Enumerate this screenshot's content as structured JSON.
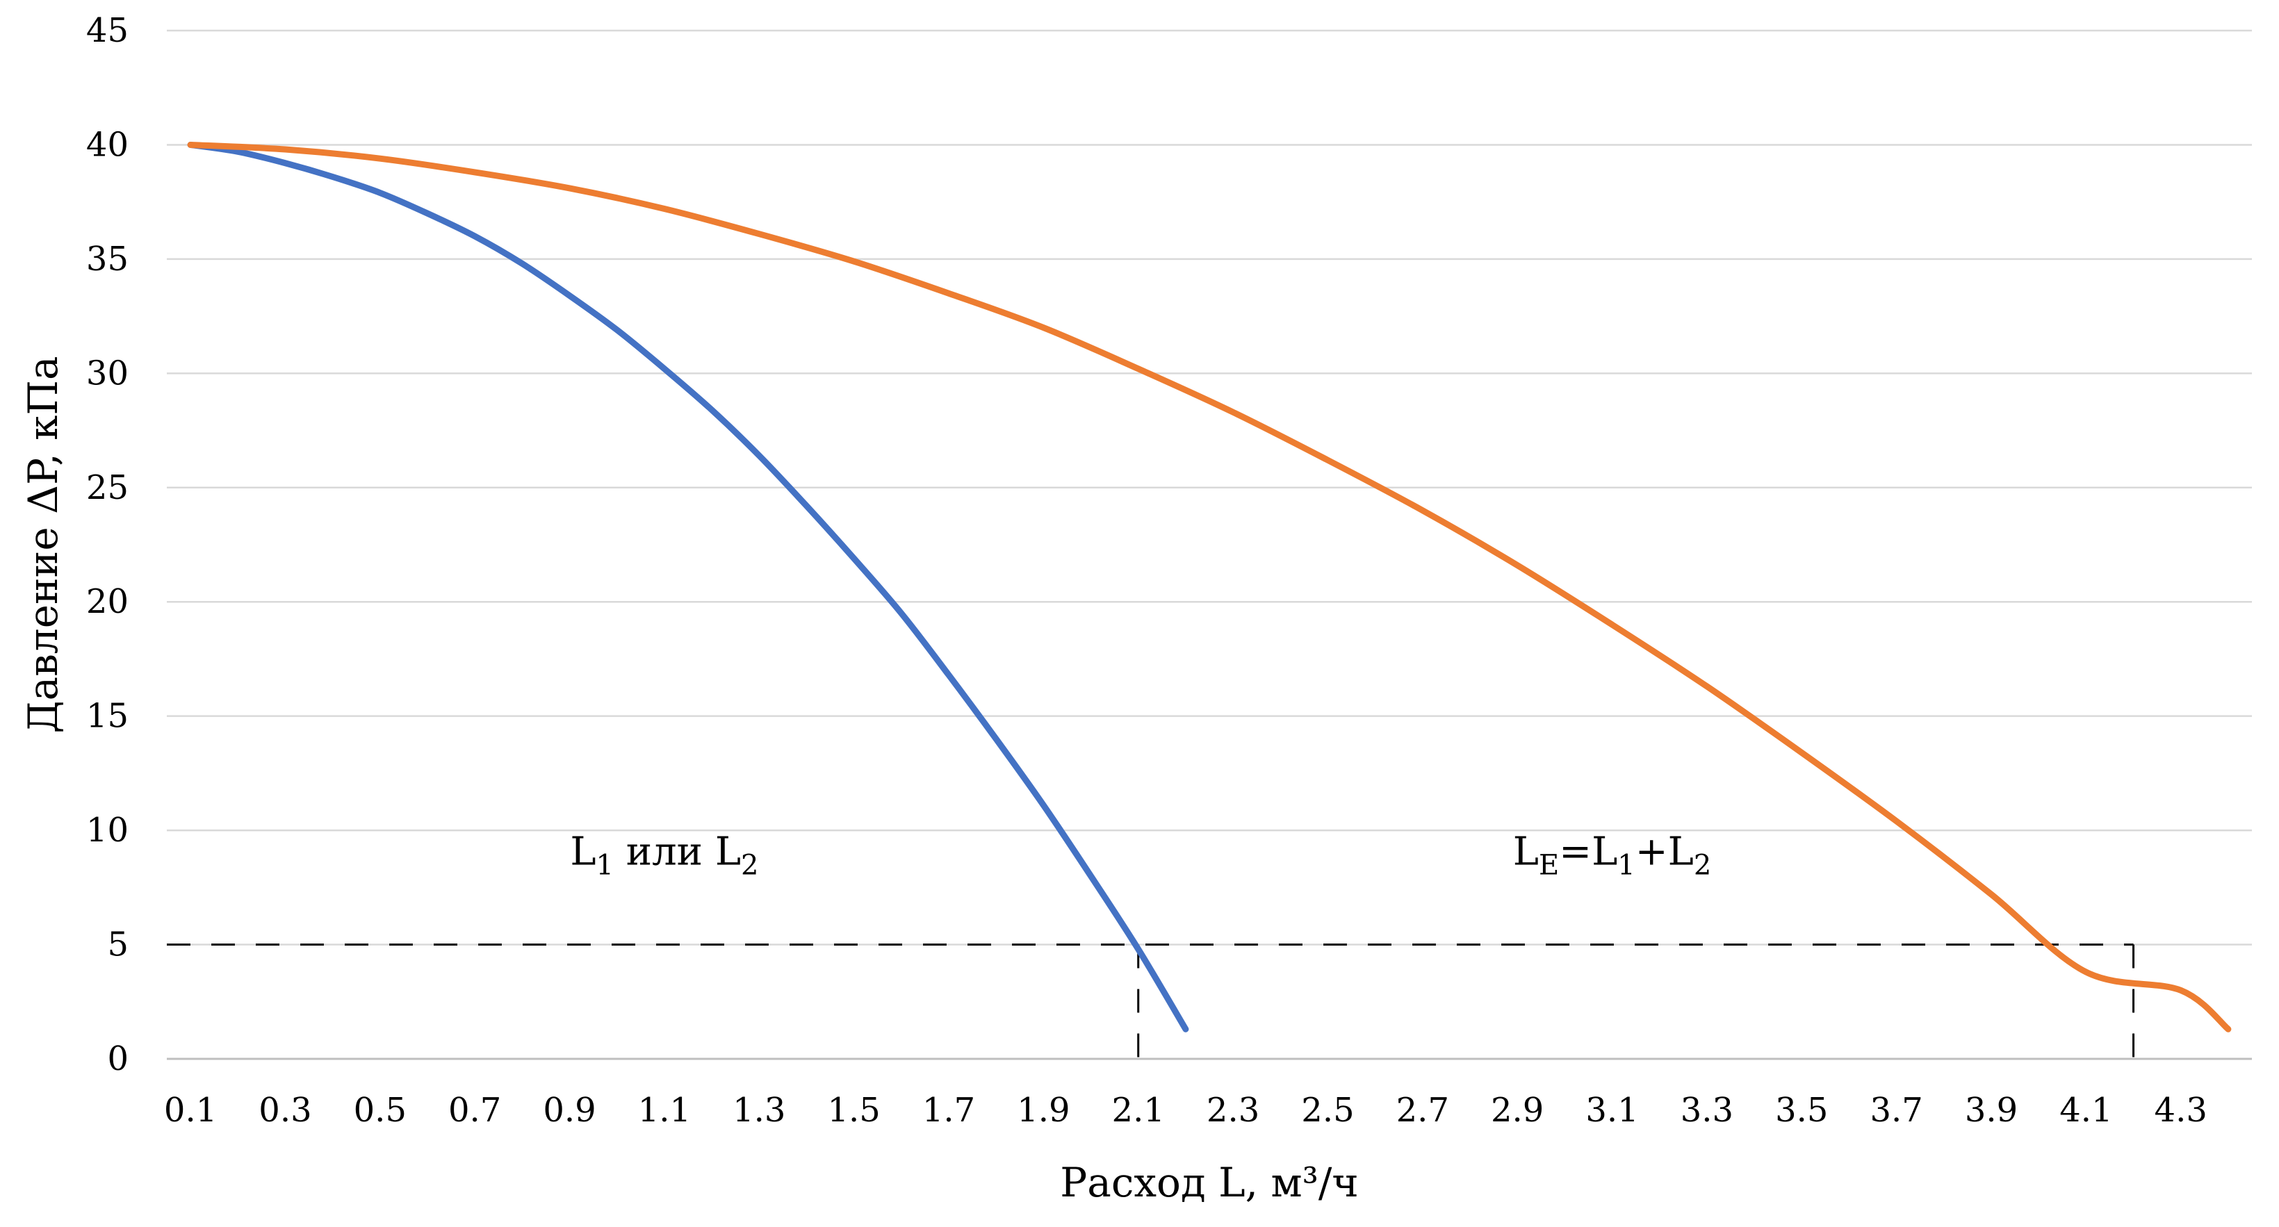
{
  "chart_data": {
    "type": "line",
    "title": "",
    "xlabel": "Расход L, м³/ч",
    "ylabel": "Давление ΔP, кПа",
    "ylim": [
      0,
      45
    ],
    "yticks": [
      "0",
      "5",
      "10",
      "15",
      "20",
      "25",
      "30",
      "35",
      "40",
      "45"
    ],
    "xticks": [
      "0.1",
      "0.3",
      "0.5",
      "0.7",
      "0.9",
      "1.1",
      "1.3",
      "1.5",
      "1.7",
      "1.9",
      "2.1",
      "2.3",
      "2.5",
      "2.7",
      "2.9",
      "3.1",
      "3.3",
      "3.5",
      "3.7",
      "3.9",
      "4.1",
      "4.3"
    ],
    "xlim": [
      0.05,
      4.45
    ],
    "grid": "horizontal",
    "colors": {
      "single_pump": "#4472c4",
      "combined": "#ed7d31",
      "reference": "#000000"
    },
    "series": [
      {
        "color": "#4472c4",
        "x": [
          0.1,
          0.2,
          0.3,
          0.4,
          0.5,
          0.6,
          0.7,
          0.8,
          0.9,
          1.0,
          1.1,
          1.2,
          1.3,
          1.4,
          1.5,
          1.6,
          1.7,
          1.8,
          1.9,
          2.0,
          2.1,
          2.2
        ],
        "y": [
          40.0,
          39.7,
          39.2,
          38.6,
          37.9,
          37.0,
          36.0,
          34.8,
          33.4,
          31.9,
          30.2,
          28.4,
          26.4,
          24.2,
          21.9,
          19.5,
          16.8,
          14.0,
          11.1,
          8.0,
          4.8,
          1.3
        ]
      },
      {
        "color": "#ed7d31",
        "x": [
          0.1,
          0.3,
          0.5,
          0.7,
          0.9,
          1.1,
          1.3,
          1.5,
          1.7,
          1.9,
          2.1,
          2.3,
          2.5,
          2.7,
          2.9,
          3.1,
          3.3,
          3.5,
          3.7,
          3.9,
          4.1,
          4.2,
          4.3,
          4.4
        ],
        "y": [
          40.0,
          39.8,
          39.4,
          38.8,
          38.1,
          37.2,
          36.1,
          34.9,
          33.5,
          32.0,
          30.2,
          28.3,
          26.2,
          24.0,
          21.6,
          19.0,
          16.3,
          13.4,
          10.4,
          7.2,
          3.8,
          4.9,
          3.0,
          1.3
        ]
      }
    ],
    "reference_lines": {
      "horizontal_y": 5,
      "vertical_x": [
        2.1,
        4.2
      ]
    },
    "annotations": [
      {
        "base": "L",
        "sub": "1",
        "mid": " или ",
        "base2": "L",
        "sub2": "2",
        "x": 1.1,
        "y": 8.5
      },
      {
        "base": "L",
        "sub": "E",
        "mid": "=",
        "base2": "L",
        "sub2": "1",
        "mid2": "+",
        "base3": "L",
        "sub3": "2",
        "x": 3.1,
        "y": 8.5
      }
    ]
  }
}
